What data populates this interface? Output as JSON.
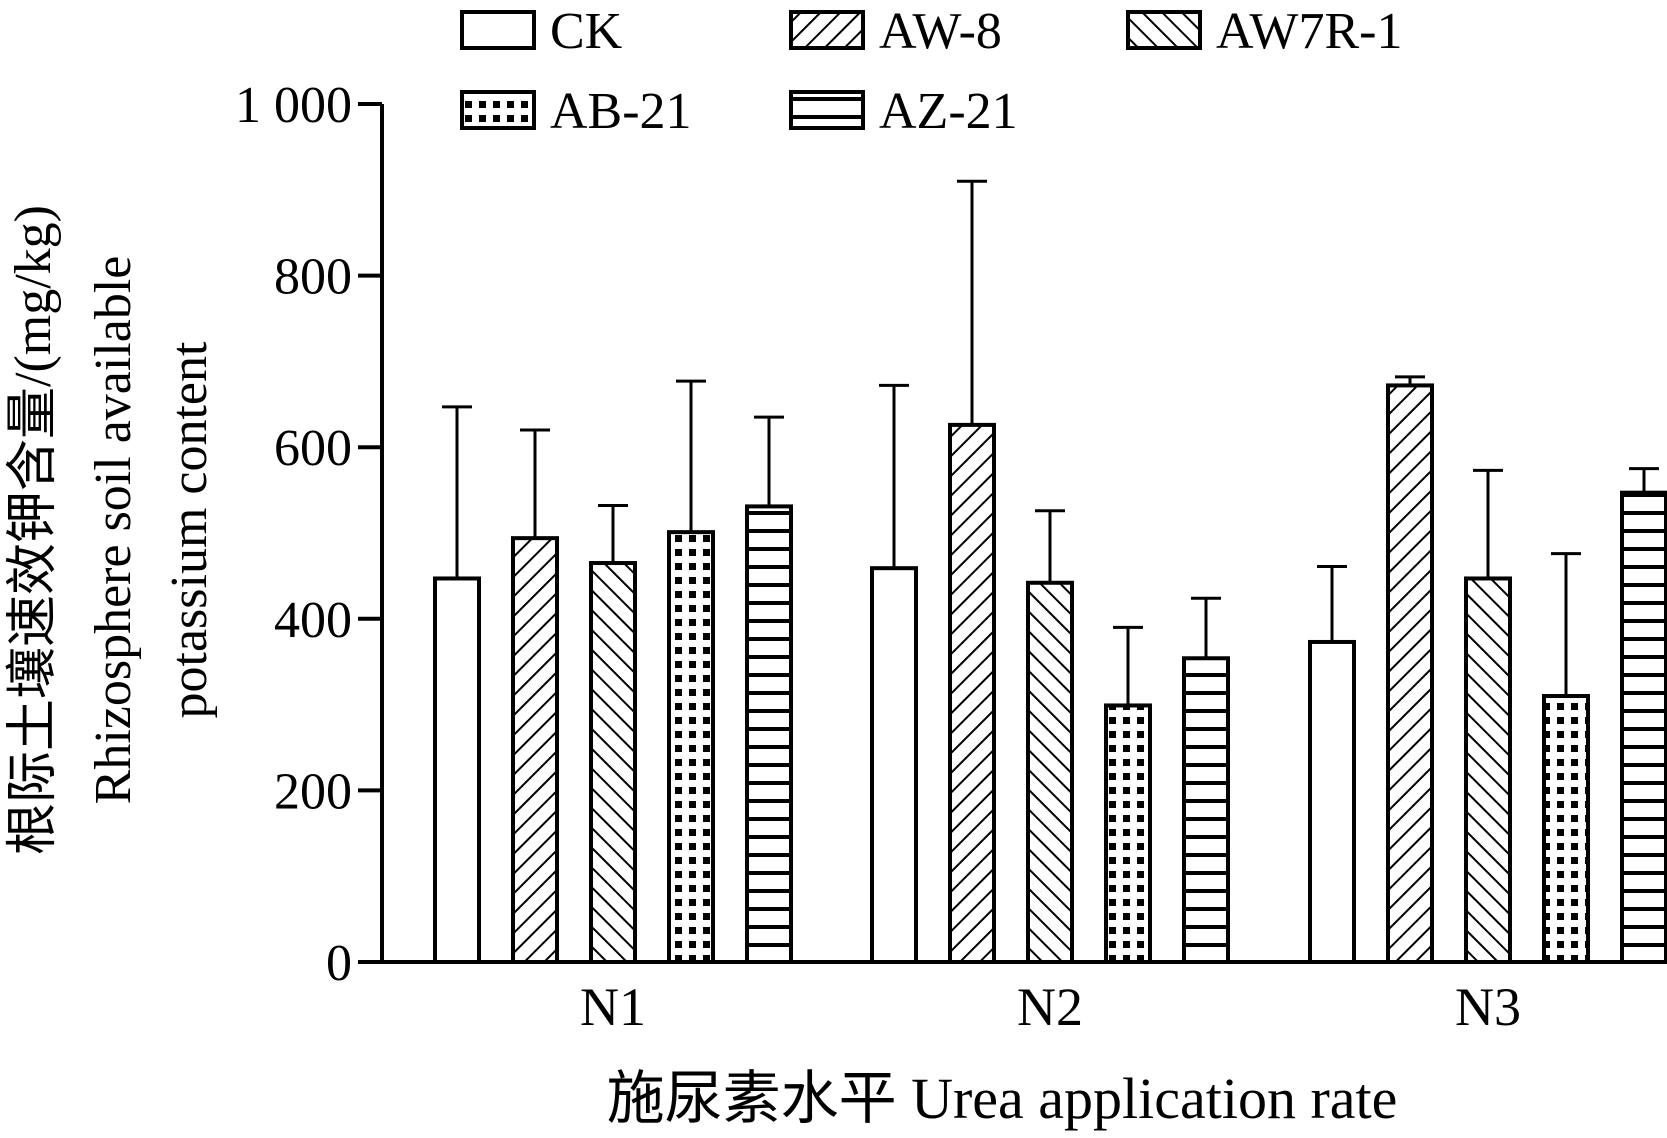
{
  "chart_data": {
    "type": "bar",
    "categories": [
      "N1",
      "N2",
      "N3"
    ],
    "series": [
      {
        "name": "CK",
        "pattern": "blank",
        "values": [
          447,
          459,
          373
        ],
        "errors": [
          200,
          213,
          88
        ]
      },
      {
        "name": "AW-8",
        "pattern": "diag-up",
        "values": [
          494,
          626,
          672
        ],
        "errors": [
          126,
          284,
          10
        ]
      },
      {
        "name": "AW7R-1",
        "pattern": "diag-down",
        "values": [
          465,
          442,
          447
        ],
        "errors": [
          67,
          84,
          126
        ]
      },
      {
        "name": "AB-21",
        "pattern": "dots",
        "values": [
          501,
          299,
          310
        ],
        "errors": [
          176,
          91,
          166
        ]
      },
      {
        "name": "AZ-21",
        "pattern": "hlines",
        "values": [
          531,
          354,
          547
        ],
        "errors": [
          104,
          70,
          28
        ]
      }
    ],
    "ylim": [
      0,
      1000
    ],
    "yticks": [
      0,
      200,
      400,
      600,
      800,
      1000
    ],
    "ytick_labels": [
      "0",
      "200",
      "400",
      "600",
      "800",
      "1 000"
    ],
    "xlabel": "施尿素水平  Urea application rate",
    "ylabel_lines": [
      "根际土壤速效钾含量/(mg/kg)",
      "Rhizosphere soil available",
      "potassium content"
    ],
    "legend_position": "top",
    "grid": false,
    "colors": {
      "ink": "#000000",
      "fill": "#ffffff"
    }
  }
}
